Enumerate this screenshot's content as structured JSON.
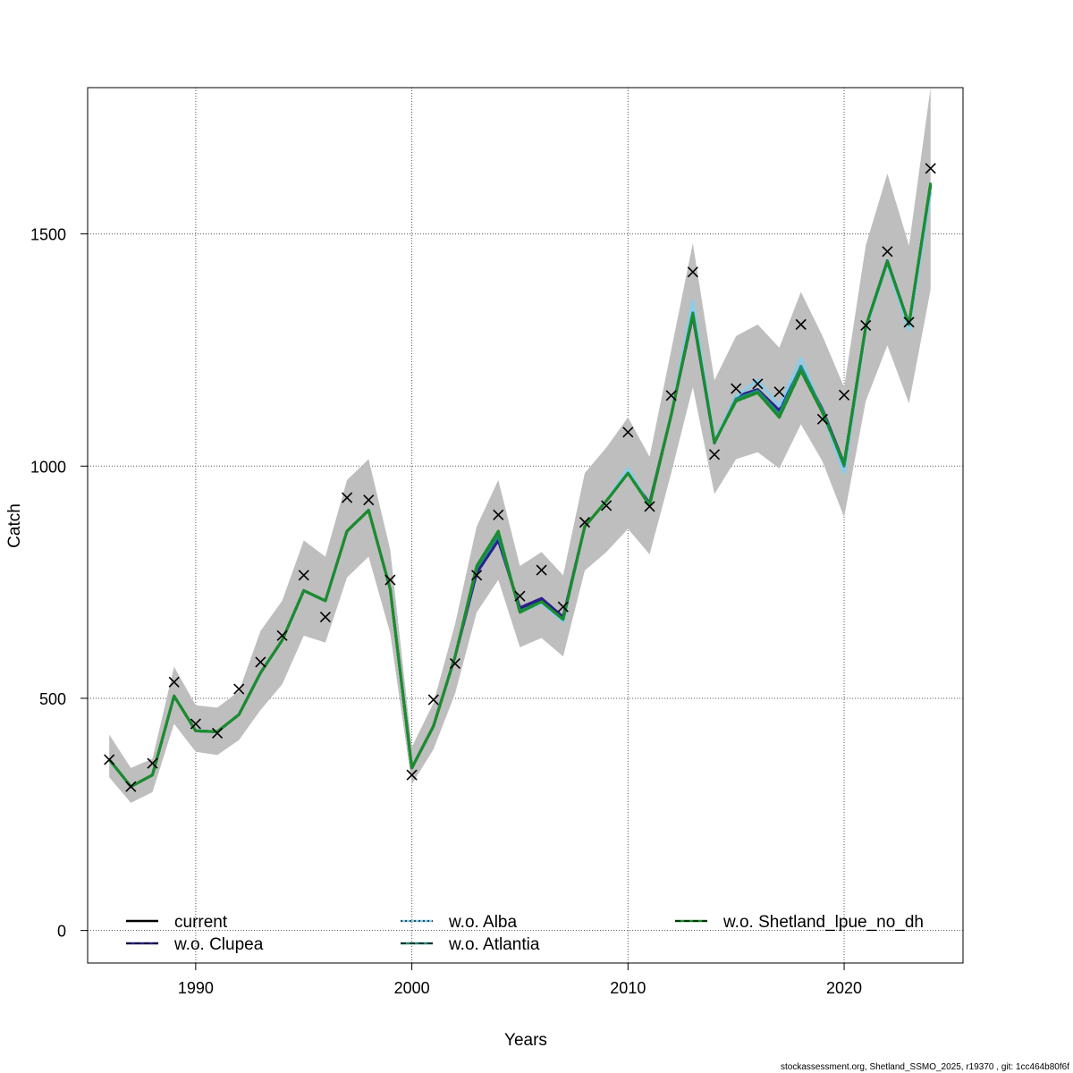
{
  "chart_data": {
    "type": "line",
    "title": "",
    "xlabel": "Years",
    "ylabel": "Catch",
    "xlim": [
      1985,
      2025.5
    ],
    "ylim": [
      -70,
      1815
    ],
    "grid": true,
    "x_ticks": [
      1990,
      2000,
      2010,
      2020
    ],
    "y_ticks": [
      0,
      500,
      1000,
      1500
    ],
    "x": [
      1986,
      1987,
      1988,
      1989,
      1990,
      1991,
      1992,
      1993,
      1994,
      1995,
      1996,
      1997,
      1998,
      1999,
      2000,
      2001,
      2002,
      2003,
      2004,
      2005,
      2006,
      2007,
      2008,
      2009,
      2010,
      2011,
      2012,
      2013,
      2014,
      2015,
      2016,
      2017,
      2018,
      2019,
      2020,
      2021,
      2022,
      2023,
      2024
    ],
    "band": {
      "color": "#bebebe",
      "lower": [
        330,
        275,
        298,
        445,
        385,
        378,
        410,
        475,
        530,
        635,
        620,
        760,
        805,
        640,
        315,
        390,
        510,
        685,
        755,
        610,
        630,
        590,
        775,
        815,
        865,
        810,
        985,
        1170,
        940,
        1015,
        1030,
        995,
        1090,
        1010,
        890,
        1140,
        1260,
        1135,
        1380
      ],
      "upper": [
        422,
        350,
        370,
        568,
        485,
        480,
        515,
        645,
        710,
        840,
        805,
        970,
        1015,
        820,
        395,
        490,
        660,
        870,
        970,
        785,
        815,
        765,
        985,
        1040,
        1105,
        1020,
        1250,
        1480,
        1185,
        1280,
        1305,
        1255,
        1375,
        1280,
        1170,
        1475,
        1630,
        1475,
        1815
      ]
    },
    "observed": {
      "marker": "x",
      "values": [
        368,
        310,
        360,
        535,
        445,
        425,
        520,
        578,
        635,
        765,
        675,
        932,
        927,
        755,
        335,
        497,
        575,
        765,
        895,
        720,
        776,
        697,
        879,
        915,
        1073,
        913,
        1152,
        1418,
        1025,
        1167,
        1177,
        1160,
        1305,
        1101,
        1153,
        1303,
        1462,
        1310,
        1641
      ]
    },
    "series": [
      {
        "name": "current",
        "color": "#000000",
        "dash": "solid",
        "values": [
          368,
          310,
          335,
          505,
          430,
          428,
          465,
          555,
          625,
          732,
          710,
          860,
          905,
          735,
          350,
          440,
          590,
          780,
          845,
          690,
          710,
          672,
          870,
          925,
          985,
          920,
          1110,
          1325,
          1050,
          1145,
          1160,
          1115,
          1210,
          1120,
          1005,
          1300,
          1442,
          1305,
          1605
        ]
      },
      {
        "name": "w.o. Clupea",
        "color": "#2b1f8f",
        "dash": "dashed",
        "values": [
          368,
          310,
          335,
          505,
          430,
          428,
          465,
          555,
          625,
          732,
          710,
          860,
          905,
          735,
          350,
          440,
          590,
          770,
          840,
          695,
          715,
          675,
          870,
          925,
          985,
          920,
          1110,
          1325,
          1050,
          1150,
          1165,
          1120,
          1212,
          1122,
          1005,
          1300,
          1442,
          1305,
          1605
        ]
      },
      {
        "name": "w.o. Alba",
        "color": "#87ceeb",
        "dash": "dotted",
        "values": [
          368,
          310,
          335,
          505,
          430,
          428,
          465,
          555,
          625,
          732,
          710,
          860,
          905,
          735,
          350,
          440,
          590,
          785,
          860,
          685,
          705,
          665,
          870,
          925,
          995,
          915,
          1110,
          1355,
          1055,
          1150,
          1185,
          1130,
          1232,
          1115,
          985,
          1295,
          1435,
          1292,
          1590
        ]
      },
      {
        "name": "w.o. Atlantia",
        "color": "#1e8a7a",
        "dash": "dashed",
        "values": [
          368,
          310,
          335,
          505,
          430,
          428,
          465,
          555,
          625,
          732,
          710,
          860,
          905,
          735,
          350,
          440,
          590,
          780,
          850,
          688,
          708,
          670,
          870,
          925,
          985,
          918,
          1110,
          1330,
          1050,
          1145,
          1162,
          1112,
          1215,
          1120,
          1000,
          1300,
          1442,
          1305,
          1605
        ]
      },
      {
        "name": "w.o. Shetland_lpue_no_dh",
        "color": "#1c8c2c",
        "dash": "dashed",
        "values": [
          368,
          310,
          335,
          505,
          430,
          428,
          465,
          555,
          625,
          732,
          710,
          860,
          905,
          735,
          350,
          440,
          590,
          785,
          860,
          685,
          708,
          670,
          870,
          925,
          985,
          915,
          1110,
          1328,
          1052,
          1140,
          1158,
          1105,
          1205,
          1115,
          1005,
          1300,
          1440,
          1305,
          1610
        ]
      }
    ],
    "legend": {
      "position": "bottom",
      "items": [
        "current",
        "w.o. Alba",
        "w.o. Shetland_lpue_no_dh",
        "w.o. Clupea",
        "w.o. Atlantia"
      ]
    }
  },
  "footer": "stockassessment.org, Shetland_SSMO_2025, r19370 , git: 1cc464b80f6f"
}
